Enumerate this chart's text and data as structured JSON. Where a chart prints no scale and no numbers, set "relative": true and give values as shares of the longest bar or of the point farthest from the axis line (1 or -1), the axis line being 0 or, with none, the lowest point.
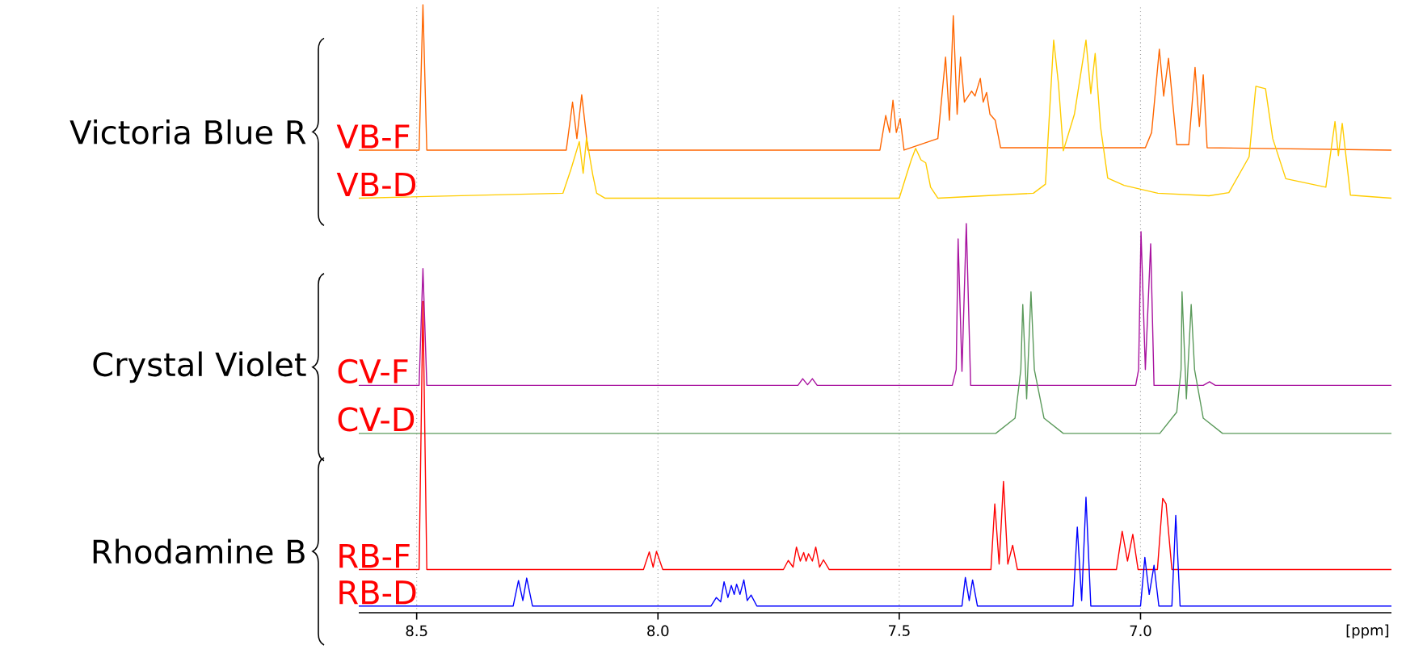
{
  "chart_data": {
    "type": "line",
    "relative": true,
    "xlabel": "[ppm]",
    "xlim": [
      8.62,
      6.48
    ],
    "xticks": [
      8.5,
      {
        "value": 8,
        "label": "8.0"
      },
      7.5,
      {
        "value": 7,
        "label": "7.0"
      }
    ],
    "grid": "x",
    "annotations": [
      "Victoria Blue R",
      "Crystal Violet",
      "Rhodamine B"
    ],
    "series": [
      {
        "name": "VB-F",
        "color": "#ff6600",
        "x": [
          8.62,
          8.495,
          8.487,
          8.479,
          8.19,
          8.177,
          8.168,
          8.158,
          8.145,
          7.54,
          7.528,
          7.52,
          7.513,
          7.506,
          7.498,
          7.49,
          7.42,
          7.404,
          7.396,
          7.388,
          7.38,
          7.373,
          7.365,
          7.35,
          7.343,
          7.332,
          7.326,
          7.319,
          7.312,
          7.301,
          7.29,
          6.99,
          6.977,
          6.961,
          6.952,
          6.942,
          6.925,
          6.9,
          6.887,
          6.878,
          6.87,
          6.862,
          6.48
        ],
        "values": [
          0.761,
          0.761,
          1.0,
          0.761,
          0.761,
          0.84,
          0.78,
          0.852,
          0.761,
          0.761,
          0.818,
          0.79,
          0.843,
          0.79,
          0.813,
          0.761,
          0.78,
          0.914,
          0.81,
          0.982,
          0.82,
          0.914,
          0.84,
          0.858,
          0.85,
          0.879,
          0.84,
          0.856,
          0.82,
          0.81,
          0.765,
          0.765,
          0.79,
          0.927,
          0.85,
          0.912,
          0.77,
          0.77,
          0.897,
          0.8,
          0.885,
          0.765,
          0.761
        ]
      },
      {
        "name": "VB-D",
        "color": "#ffcc00",
        "x": [
          8.62,
          8.197,
          8.18,
          8.163,
          8.155,
          8.148,
          8.135,
          8.127,
          8.11,
          7.5,
          7.485,
          7.475,
          7.466,
          7.455,
          7.445,
          7.435,
          7.42,
          7.222,
          7.197,
          7.18,
          7.17,
          7.16,
          7.137,
          7.113,
          7.103,
          7.094,
          7.083,
          7.068,
          7.034,
          6.964,
          6.858,
          6.817,
          6.775,
          6.761,
          6.741,
          6.726,
          6.699,
          6.616,
          6.597,
          6.59,
          6.582,
          6.565,
          6.48
        ],
        "values": [
          0.682,
          0.69,
          0.73,
          0.775,
          0.723,
          0.781,
          0.72,
          0.69,
          0.682,
          0.682,
          0.72,
          0.745,
          0.764,
          0.745,
          0.74,
          0.7,
          0.682,
          0.69,
          0.705,
          0.942,
          0.87,
          0.76,
          0.82,
          0.942,
          0.854,
          0.92,
          0.8,
          0.715,
          0.703,
          0.69,
          0.686,
          0.691,
          0.75,
          0.866,
          0.862,
          0.78,
          0.714,
          0.7,
          0.808,
          0.752,
          0.805,
          0.687,
          0.682
        ]
      },
      {
        "name": "CV-F",
        "color": "#a8129f",
        "x": [
          8.62,
          8.495,
          8.487,
          8.479,
          7.71,
          7.7,
          7.69,
          7.68,
          7.67,
          7.39,
          7.382,
          7.378,
          7.37,
          7.361,
          7.352,
          7.01,
          7.004,
          6.999,
          6.99,
          6.979,
          6.972,
          6.87,
          6.857,
          6.845,
          6.48
        ],
        "values": [
          0.374,
          0.374,
          0.566,
          0.374,
          0.374,
          0.385,
          0.375,
          0.385,
          0.374,
          0.374,
          0.4,
          0.615,
          0.397,
          0.64,
          0.374,
          0.374,
          0.4,
          0.627,
          0.4,
          0.607,
          0.374,
          0.374,
          0.38,
          0.374,
          0.374
        ]
      },
      {
        "name": "CV-D",
        "color": "#5b9a5b",
        "x": [
          8.62,
          7.3,
          7.26,
          7.248,
          7.244,
          7.236,
          7.227,
          7.22,
          7.2,
          7.16,
          6.96,
          6.925,
          6.916,
          6.914,
          6.905,
          6.895,
          6.888,
          6.87,
          6.83,
          6.48
        ],
        "values": [
          0.295,
          0.295,
          0.32,
          0.4,
          0.507,
          0.352,
          0.528,
          0.4,
          0.32,
          0.295,
          0.295,
          0.33,
          0.4,
          0.528,
          0.352,
          0.507,
          0.4,
          0.32,
          0.295,
          0.295
        ]
      },
      {
        "name": "RB-F",
        "color": "#ff0000",
        "x": [
          8.62,
          8.495,
          8.487,
          8.479,
          8.03,
          8.018,
          8.01,
          8.003,
          7.99,
          7.74,
          7.73,
          7.72,
          7.713,
          7.705,
          7.698,
          7.693,
          7.688,
          7.68,
          7.673,
          7.665,
          7.657,
          7.645,
          7.31,
          7.302,
          7.293,
          7.284,
          7.275,
          7.265,
          7.255,
          7.05,
          7.038,
          7.027,
          7.016,
          7.005,
          6.965,
          6.954,
          6.947,
          6.935,
          6.48
        ],
        "values": [
          0.071,
          0.071,
          0.512,
          0.071,
          0.071,
          0.1,
          0.075,
          0.101,
          0.071,
          0.071,
          0.086,
          0.075,
          0.108,
          0.085,
          0.099,
          0.085,
          0.097,
          0.085,
          0.108,
          0.075,
          0.087,
          0.071,
          0.071,
          0.179,
          0.08,
          0.216,
          0.08,
          0.111,
          0.071,
          0.071,
          0.134,
          0.085,
          0.129,
          0.071,
          0.071,
          0.188,
          0.179,
          0.071,
          0.071
        ]
      },
      {
        "name": "RB-D",
        "color": "#0000ff",
        "x": [
          8.62,
          8.3,
          8.289,
          8.28,
          8.272,
          8.26,
          7.89,
          7.879,
          7.87,
          7.863,
          7.855,
          7.848,
          7.842,
          7.837,
          7.83,
          7.822,
          7.815,
          7.807,
          7.795,
          7.37,
          7.363,
          7.355,
          7.348,
          7.338,
          7.14,
          7.131,
          7.122,
          7.113,
          7.103,
          7.0,
          6.991,
          6.982,
          6.972,
          6.962,
          6.935,
          6.927,
          6.918,
          6.48
        ],
        "values": [
          0.011,
          0.011,
          0.053,
          0.02,
          0.057,
          0.011,
          0.011,
          0.025,
          0.018,
          0.051,
          0.025,
          0.045,
          0.03,
          0.047,
          0.03,
          0.054,
          0.02,
          0.029,
          0.011,
          0.011,
          0.058,
          0.02,
          0.054,
          0.011,
          0.011,
          0.141,
          0.02,
          0.19,
          0.011,
          0.011,
          0.091,
          0.03,
          0.078,
          0.011,
          0.011,
          0.16,
          0.011,
          0.011
        ]
      }
    ]
  }
}
